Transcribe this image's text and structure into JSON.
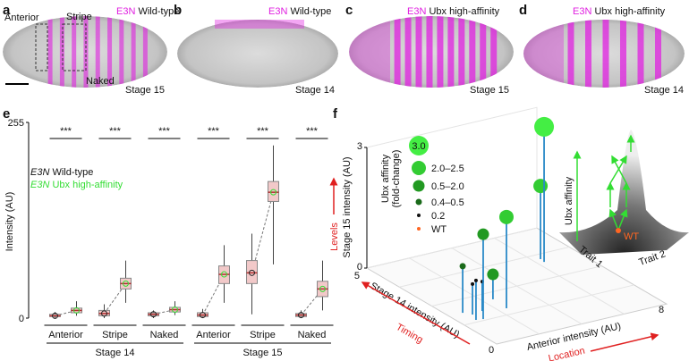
{
  "panels": {
    "a": {
      "label": "a",
      "reporter": "E3N",
      "genotype": "Wild-type",
      "stage": "Stage 15",
      "regions": [
        "Anterior",
        "Stripe",
        "Naked"
      ]
    },
    "b": {
      "label": "b",
      "reporter": "E3N",
      "genotype": "Wild-type",
      "stage": "Stage 14"
    },
    "c": {
      "label": "c",
      "reporter": "E3N",
      "genotype": "Ubx high-affinity",
      "stage": "Stage 15"
    },
    "d": {
      "label": "d",
      "reporter": "E3N",
      "genotype": "Ubx high-affinity",
      "stage": "Stage 14"
    },
    "e": {
      "label": "e",
      "type": "box",
      "ylabel": "Intensity (AU)",
      "ylim": [
        0,
        255
      ],
      "yticks": [
        0,
        255
      ],
      "categories": [
        "Anterior",
        "Stripe",
        "Naked",
        "Anterior",
        "Stripe",
        "Naked"
      ],
      "groups": [
        "Stage 14",
        "Stage 15"
      ],
      "significance": [
        "***",
        "***",
        "***",
        "***",
        "***",
        "***"
      ],
      "series": [
        {
          "reporter": "E3N",
          "name": "Wild-type",
          "color": "#222222",
          "boxes": [
            [
              0,
              2,
              3,
              5,
              8
            ],
            [
              0,
              3,
              6,
              10,
              18
            ],
            [
              0,
              3,
              5,
              7,
              10
            ],
            [
              0,
              2,
              4,
              7,
              12
            ],
            [
              5,
              45,
              59,
              75,
              110
            ],
            [
              0,
              2,
              4,
              6,
              10
            ]
          ]
        },
        {
          "reporter": "E3N",
          "name": "Ubx high-affinity",
          "color": "#33dd33",
          "boxes": [
            [
              3,
              7,
              10,
              13,
              22
            ],
            [
              20,
              38,
              45,
              52,
              75
            ],
            [
              4,
              8,
              11,
              14,
              22
            ],
            [
              20,
              45,
              57,
              68,
              95
            ],
            [
              70,
              152,
              164,
              178,
              225
            ],
            [
              10,
              28,
              38,
              48,
              75
            ]
          ]
        }
      ]
    },
    "f": {
      "label": "f",
      "type": "lollipop3d",
      "xlabel": "Anterior intensity (AU)",
      "ylabel": "Stage 14 intensity (AU)",
      "zlabel": "Stage 15 intensity (AU)",
      "xarrow": "Location",
      "yarrow": "Timing",
      "zarrow": "Levels",
      "xlim": [
        0,
        8
      ],
      "xticks": [
        0,
        8
      ],
      "ylim": [
        0,
        5
      ],
      "yticks": [
        5
      ],
      "zlim": [
        0,
        3
      ],
      "zticks": [
        0,
        3
      ],
      "legend_title": [
        "Ubx affinity",
        "(fold-change)"
      ],
      "legend": [
        {
          "label": "3.0",
          "color": "#44ee44"
        },
        {
          "label": "2.0–2.5",
          "color": "#33cc33"
        },
        {
          "label": "0.5–2.0",
          "color": "#229922"
        },
        {
          "label": "0.4–0.5",
          "color": "#1a6a1a"
        },
        {
          "label": "0.2",
          "color": "#111111"
        },
        {
          "label": "WT",
          "color": "#ff6622"
        }
      ],
      "points": [
        {
          "x": 6.3,
          "y": 3.33,
          "z": 3.36,
          "class": 0
        },
        {
          "x": 6.34,
          "y": 3.5,
          "z": 1.82,
          "class": 1
        },
        {
          "x": 2.38,
          "y": 1.57,
          "z": 2.27,
          "class": 1
        },
        {
          "x": 0.98,
          "y": 1.32,
          "z": 2.11,
          "class": 2
        },
        {
          "x": 2.44,
          "y": 2.14,
          "z": 0.62,
          "class": 2
        },
        {
          "x": 0.65,
          "y": 1.84,
          "z": 1.16,
          "class": 3
        },
        {
          "x": 0.69,
          "y": 1.36,
          "z": 0.98,
          "class": 4
        },
        {
          "x": 1.41,
          "y": 1.71,
          "z": 0.73,
          "class": 4
        },
        {
          "x": 0.88,
          "y": 1.65,
          "z": 0.76,
          "class": 4
        }
      ],
      "inset": {
        "ylabel": "Ubx affinity",
        "xlabel1": "Trait 1",
        "xlabel2": "Trait 2",
        "marker": "WT"
      }
    }
  }
}
